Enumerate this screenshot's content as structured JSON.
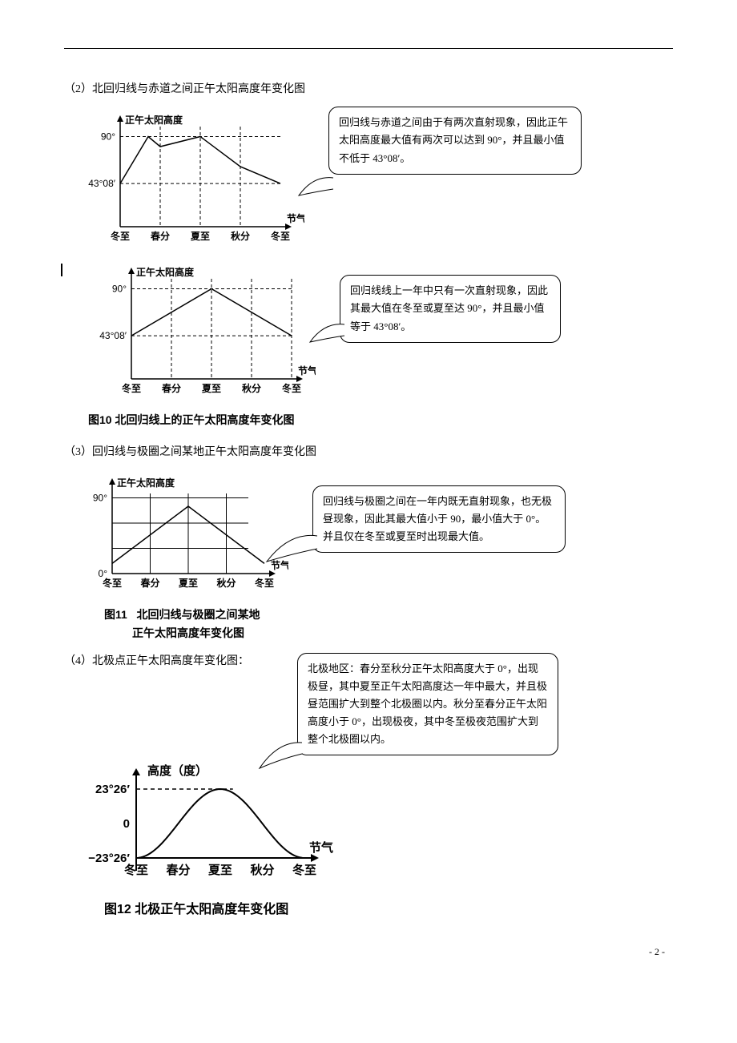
{
  "sections": {
    "s2": "（2）北回归线与赤道之间正午太阳高度年变化图",
    "s3": "（3）回归线与极圈之间某地正午太阳高度年变化图",
    "s4": "（4）北极点正午太阳高度年变化图："
  },
  "captions": {
    "fig10": "图10 北回归线上的正午太阳高度年变化图",
    "fig11_l1": "北回归线与极圈之间某地",
    "fig11_l2": "正午太阳高度年变化图",
    "fig11_prefix": "图11",
    "fig12": "图12 北极正午太阳高度年变化图"
  },
  "callouts": {
    "c1": "回归线与赤道之间由于有两次直射现象，因此正午太阳高度最大值有两次可以达到 90°，并且最小值不低于 43°08′。",
    "c2": "回归线线上一年中只有一次直射现象，因此其最大值在冬至或夏至达 90°，并且最小值等于 43°08′。",
    "c3": "回归线与极圈之间在一年内既无直射现象，也无极昼现象，因此其最大值小于 90，最小值大于 0°。并且仅在冬至或夏至时出现最大值。",
    "c4": "北极地区：春分至秋分正午太阳高度大于 0°，出现极昼，其中夏至正午太阳高度达一年中最大，并且极昼范围扩大到整个北极圈以内。秋分至春分正午太阳高度小于 0°，出现极夜，其中冬至极夜范围扩大到整个北极圈以内。"
  },
  "chart_common": {
    "yAxisLabel": "正午太阳高度",
    "xAxisLabel": "节气",
    "solarTerms": [
      "冬至",
      "春分",
      "夏至",
      "秋分",
      "冬至"
    ],
    "stroke": "#000000",
    "dashColor": "#000000",
    "background": "#ffffff",
    "axisFontFamily": "SimHei",
    "axisFontSize": 12,
    "dashPattern": "4,3"
  },
  "chart1": {
    "type": "line",
    "yTicks": [
      "90°",
      "43°08′"
    ],
    "yTickValues": [
      90,
      43.13
    ],
    "xTickIndices": [
      0,
      1,
      2,
      3,
      4
    ],
    "series": [
      [
        0,
        43.13
      ],
      [
        0.7,
        90
      ],
      [
        1,
        80
      ],
      [
        2,
        90
      ],
      [
        3,
        60
      ],
      [
        4,
        43.13
      ]
    ],
    "dashedX": [
      1,
      2,
      3
    ],
    "dashedY": [
      90,
      43.13
    ],
    "lineColor": "#000000",
    "lineWidth": 1.5
  },
  "chart2": {
    "type": "line",
    "yTicks": [
      "90°",
      "43°08′"
    ],
    "yTickValues": [
      90,
      43.13
    ],
    "xTickIndices": [
      0,
      1,
      2,
      3,
      4
    ],
    "series": [
      [
        0,
        43.13
      ],
      [
        2,
        90
      ],
      [
        4,
        43.13
      ]
    ],
    "dashedX": [
      1,
      2,
      3,
      4
    ],
    "dashedY": [
      90,
      43.13
    ],
    "lineColor": "#000000",
    "lineWidth": 1.5
  },
  "chart3": {
    "type": "line",
    "yTicks": [
      "90°",
      "0°"
    ],
    "yTickValues": [
      90,
      0
    ],
    "xTickIndices": [
      0,
      1,
      2,
      3,
      4
    ],
    "series": [
      [
        0,
        12
      ],
      [
        2,
        80
      ],
      [
        4,
        12
      ]
    ],
    "gridY": [
      30,
      60,
      90
    ],
    "gridX": [
      1,
      2,
      3
    ],
    "lineColor": "#000000",
    "lineWidth": 1.5
  },
  "chart4": {
    "type": "line",
    "yAxisLabel": "高度（度）",
    "yTicks": [
      "23°26′",
      "0",
      "−23°26′"
    ],
    "yTickValues": [
      23.43,
      0,
      -23.43
    ],
    "xTickIndices": [
      0,
      1,
      2,
      3,
      4
    ],
    "series": [
      [
        0,
        -23.43
      ],
      [
        1,
        0
      ],
      [
        2,
        23.43
      ],
      [
        3,
        0
      ],
      [
        4,
        -23.43
      ]
    ],
    "curve": true,
    "dashedY": [
      23.43
    ],
    "lineColor": "#000000",
    "lineWidth": 2,
    "boldLabels": true
  },
  "pageNumber": "- 2 -"
}
